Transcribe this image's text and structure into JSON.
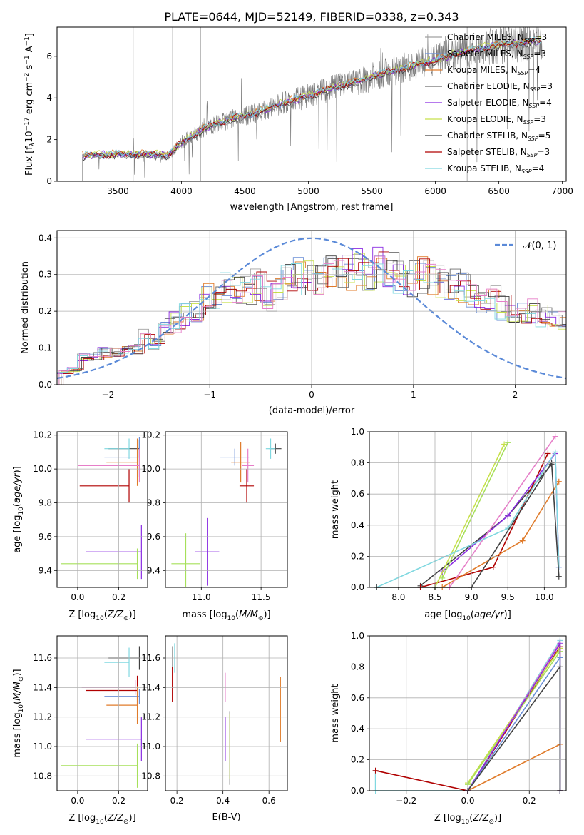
{
  "figure": {
    "title": "PLATE=0644, MJD=52149, FIBERID=0338, z=0.343"
  },
  "series_colors": {
    "Chabrier MILES": "#a0a0a0",
    "Salpeter MILES": "#6b8fd6",
    "Kroupa MILES": "#e07b2a",
    "Chabrier ELODIE": "#6e6e6e",
    "Salpeter ELODIE": "#8a2be2",
    "Kroupa ELODIE": "#c7e04a",
    "Chabrier STELIB": "#404040",
    "Salpeter STELIB": "#b00000",
    "Kroupa STELIB": "#80d8e0",
    "pink": "#e67ec8",
    "lightgreen": "#a6e05a",
    "gaussian": "#5b8ad8"
  },
  "chart_data": [
    {
      "id": "spectrum",
      "type": "line",
      "xlabel": "wavelength [Angstrom, rest frame]",
      "ylabel": "Flux [f",
      "ylabel_parts": [
        "Flux [f",
        "λ",
        "10",
        "−17",
        " erg cm",
        "−2",
        " s",
        "−1",
        " A",
        "−1",
        "]"
      ],
      "xlim": [
        3020,
        7030
      ],
      "ylim": [
        0,
        7.4
      ],
      "xticks": [
        3500,
        4000,
        4500,
        5000,
        5500,
        6000,
        6500,
        7000
      ],
      "yticks": [
        0,
        2,
        4,
        6
      ],
      "grid": false,
      "legend_position": "top-right",
      "legend": [
        {
          "pre": "Chabrier MILES, N",
          "sub": "SSP",
          "post": "=3",
          "color": "#a0a0a0"
        },
        {
          "pre": "Salpeter MILES, N",
          "sub": "SSP",
          "post": "=3",
          "color": "#6b8fd6"
        },
        {
          "pre": "Kroupa MILES, N",
          "sub": "SSP",
          "post": "=4",
          "color": "#e07b2a"
        },
        {
          "pre": "Chabrier ELODIE, N",
          "sub": "SSP",
          "post": "=3",
          "color": "#6e6e6e"
        },
        {
          "pre": "Salpeter ELODIE, N",
          "sub": "SSP",
          "post": "=4",
          "color": "#8a2be2"
        },
        {
          "pre": "Kroupa ELODIE, N",
          "sub": "SSP",
          "post": "=3",
          "color": "#c7e04a"
        },
        {
          "pre": "Chabrier STELIB, N",
          "sub": "SSP",
          "post": "=5",
          "color": "#404040"
        },
        {
          "pre": "Salpeter STELIB, N",
          "sub": "SSP",
          "post": "=3",
          "color": "#b00000"
        },
        {
          "pre": "Kroupa STELIB, N",
          "sub": "SSP",
          "post": "=4",
          "color": "#80d8e0"
        }
      ],
      "model_trend": {
        "x": [
          3220,
          3300,
          3500,
          3700,
          3900,
          4000,
          4200,
          4400,
          4600,
          4800,
          5000,
          5200,
          5400,
          5600,
          5800,
          6000,
          6200,
          6400,
          6600,
          6840
        ],
        "y": [
          1.2,
          1.25,
          1.3,
          1.3,
          1.25,
          1.85,
          2.6,
          3.0,
          3.3,
          3.75,
          4.1,
          4.5,
          4.8,
          5.2,
          5.5,
          5.8,
          6.2,
          6.45,
          6.6,
          6.75
        ]
      },
      "observed_spectrum": {
        "x_start": 3220,
        "x_end": 6840,
        "noise_low": 0.35,
        "noise_high": 1.4
      }
    },
    {
      "id": "residuals",
      "type": "histogram",
      "xlabel": "(data-model)/error",
      "ylabel": "Normed distribution",
      "xlim": [
        -2.5,
        2.5
      ],
      "ylim": [
        0,
        0.42
      ],
      "xticks": [
        -2,
        -1,
        0,
        1,
        2
      ],
      "yticks": [
        0.0,
        0.1,
        0.2,
        0.3,
        0.4
      ],
      "grid": true,
      "legend_position": "top-right",
      "legend": [
        {
          "label": "𝒩(0, 1)",
          "color": "#5b8ad8",
          "style": "dashed"
        }
      ],
      "bin_width": 0.1,
      "bin_start": -2.5,
      "base_density": [
        0.035,
        0.04,
        0.075,
        0.08,
        0.09,
        0.09,
        0.1,
        0.1,
        0.13,
        0.11,
        0.16,
        0.17,
        0.19,
        0.2,
        0.24,
        0.24,
        0.26,
        0.25,
        0.26,
        0.27,
        0.24,
        0.26,
        0.29,
        0.3,
        0.29,
        0.28,
        0.3,
        0.31,
        0.3,
        0.32,
        0.31,
        0.32,
        0.31,
        0.3,
        0.29,
        0.3,
        0.29,
        0.28,
        0.27,
        0.26,
        0.25,
        0.22,
        0.24,
        0.21,
        0.2,
        0.19,
        0.2,
        0.19,
        0.17,
        0.18,
        0.15,
        0.16,
        0.15,
        0.14,
        0.13,
        0.12,
        0.12,
        0.11,
        0.11,
        0.1,
        0.1,
        0.09,
        0.09,
        0.08,
        0.08,
        0.07,
        0.07,
        0.06,
        0.06,
        0.05,
        0.05,
        0.045,
        0.04,
        0.04,
        0.035,
        0.03,
        0.03,
        0.025,
        0.025,
        0.02,
        0.02,
        0.02,
        0.02,
        0.02,
        0.02,
        0.02,
        0.02,
        0.02,
        0.02,
        0.02
      ],
      "gaussian": {
        "mean": 0,
        "sigma": 1
      }
    },
    {
      "id": "age-vs-Z",
      "type": "errorbar",
      "xlabel": "Z [log10(Z/Z⊙)]",
      "ylabel": "age [log10(age/yr)]",
      "xlim": [
        -0.1,
        0.34
      ],
      "ylim": [
        9.3,
        10.22
      ],
      "xticks": [
        0.0,
        0.2
      ],
      "yticks": [
        9.4,
        9.6,
        9.8,
        10.0,
        10.2
      ],
      "grid": true,
      "points": [
        {
          "x": 0.3,
          "y": 10.12,
          "xerr": [
            0.15,
            0.0
          ],
          "yerr": 0.05,
          "color": "#404040"
        },
        {
          "x": 0.25,
          "y": 10.12,
          "xerr": [
            0.12,
            0.0
          ],
          "yerr": 0.06,
          "color": "#80d8e0"
        },
        {
          "x": 0.3,
          "y": 10.07,
          "xerr": [
            0.17,
            0.0
          ],
          "yerr": 0.12,
          "color": "#6b8fd6"
        },
        {
          "x": 0.29,
          "y": 10.04,
          "xerr": [
            0.15,
            0.0
          ],
          "yerr": 0.14,
          "color": "#e07b2a"
        },
        {
          "x": 0.3,
          "y": 10.02,
          "xerr": [
            0.3,
            0.0
          ],
          "yerr": 0.1,
          "color": "#e67ec8"
        },
        {
          "x": 0.25,
          "y": 9.9,
          "xerr": [
            0.24,
            0.0
          ],
          "yerr": 0.1,
          "color": "#b00000"
        },
        {
          "x": 0.31,
          "y": 9.51,
          "xerr": [
            0.27,
            0.0
          ],
          "yerr": 0.16,
          "color": "#8a2be2"
        },
        {
          "x": 0.29,
          "y": 9.44,
          "xerr": [
            0.37,
            0.0
          ],
          "yerr": 0.09,
          "color": "#a6e05a"
        }
      ]
    },
    {
      "id": "age-vs-mass",
      "type": "errorbar",
      "xlabel": "mass [log10(M/M⊙)]",
      "ylabel": "",
      "xlim": [
        10.7,
        11.72
      ],
      "ylim": [
        9.3,
        10.22
      ],
      "xticks": [
        11.0,
        11.5
      ],
      "yticks": [
        9.4,
        9.6,
        9.8,
        10.0,
        10.2
      ],
      "grid": true,
      "points": [
        {
          "x": 11.62,
          "y": 10.12,
          "xerr": 0.05,
          "yerr": 0.03,
          "color": "#404040"
        },
        {
          "x": 11.58,
          "y": 10.12,
          "xerr": 0.04,
          "yerr": 0.06,
          "color": "#80d8e0"
        },
        {
          "x": 11.28,
          "y": 10.07,
          "xerr": 0.12,
          "yerr": 0.05,
          "color": "#6b8fd6"
        },
        {
          "x": 11.33,
          "y": 10.04,
          "xerr": 0.08,
          "yerr": 0.12,
          "color": "#e07b2a"
        },
        {
          "x": 11.39,
          "y": 10.02,
          "xerr": 0.05,
          "yerr": 0.1,
          "color": "#e67ec8"
        },
        {
          "x": 11.38,
          "y": 9.9,
          "xerr": 0.06,
          "yerr": 0.1,
          "color": "#b00000"
        },
        {
          "x": 11.05,
          "y": 9.51,
          "xerr": 0.1,
          "yerr": 0.2,
          "color": "#8a2be2"
        },
        {
          "x": 10.87,
          "y": 9.44,
          "xerr": 0.12,
          "yerr": 0.18,
          "color": "#a6e05a"
        }
      ]
    },
    {
      "id": "massweight-vs-age",
      "type": "line",
      "xlabel": "age [log10(age/yr)]",
      "ylabel": "mass weight",
      "xlim": [
        7.6,
        10.3
      ],
      "ylim": [
        0,
        1
      ],
      "xticks": [
        8.0,
        8.5,
        9.0,
        9.5,
        10.0
      ],
      "yticks": [
        0.0,
        0.2,
        0.4,
        0.6,
        0.8,
        1.0
      ],
      "grid": true,
      "series": [
        {
          "x": [
            8.3,
            9.5,
            10.1
          ],
          "y": [
            0.01,
            0.46,
            0.79
          ],
          "color": "#404040"
        },
        {
          "x": [
            8.3,
            9.3,
            10.05
          ],
          "y": [
            0.0,
            0.13,
            0.86
          ],
          "color": "#b00000"
        },
        {
          "x": [
            8.6,
            9.5,
            10.15,
            10.2
          ],
          "y": [
            0.1,
            0.46,
            0.86,
            0.13
          ],
          "color": "#8a2be2"
        },
        {
          "x": [
            8.6,
            9.7,
            10.2
          ],
          "y": [
            0.0,
            0.3,
            0.68
          ],
          "color": "#e07b2a"
        },
        {
          "x": [
            8.7,
            10.15
          ],
          "y": [
            0.0,
            0.97
          ],
          "color": "#e67ec8"
        },
        {
          "x": [
            8.5,
            9.45
          ],
          "y": [
            0.0,
            0.92
          ],
          "color": "#c7e04a"
        },
        {
          "x": [
            8.6,
            9.5
          ],
          "y": [
            0.06,
            0.93
          ],
          "color": "#a6e05a"
        },
        {
          "x": [
            7.7,
            9.5,
            10.15,
            10.2
          ],
          "y": [
            0.0,
            0.38,
            0.87,
            0.13
          ],
          "color": "#80d8e0"
        },
        {
          "x": [
            7.7,
            8.5,
            9.0,
            10.1,
            10.2
          ],
          "y": [
            0.0,
            0.0,
            0.0,
            0.8,
            0.07
          ],
          "color": "#404040"
        }
      ]
    },
    {
      "id": "mass-vs-Z",
      "type": "errorbar",
      "xlabel": "Z [log10(Z/Z⊙)]",
      "ylabel": "mass [log10(M/M⊙)]",
      "xlim": [
        -0.1,
        0.34
      ],
      "ylim": [
        10.7,
        11.75
      ],
      "xticks": [
        0.0,
        0.2
      ],
      "yticks": [
        10.8,
        11.0,
        11.2,
        11.4,
        11.6
      ],
      "grid": true,
      "points": [
        {
          "x": 0.3,
          "y": 11.6,
          "xerr": [
            0.15,
            0.0
          ],
          "yerr": 0.08,
          "color": "#404040"
        },
        {
          "x": 0.25,
          "y": 11.57,
          "xerr": [
            0.12,
            0.0
          ],
          "yerr": 0.1,
          "color": "#80d8e0"
        },
        {
          "x": 0.28,
          "y": 11.4,
          "xerr": [
            0.26,
            0.0
          ],
          "yerr": 0.05,
          "color": "#e67ec8"
        },
        {
          "x": 0.29,
          "y": 11.38,
          "xerr": [
            0.25,
            0.0
          ],
          "yerr": 0.1,
          "color": "#b00000"
        },
        {
          "x": 0.3,
          "y": 11.34,
          "xerr": [
            0.17,
            0.0
          ],
          "yerr": 0.05,
          "color": "#6b8fd6"
        },
        {
          "x": 0.29,
          "y": 11.28,
          "xerr": [
            0.15,
            0.0
          ],
          "yerr": 0.13,
          "color": "#e07b2a"
        },
        {
          "x": 0.31,
          "y": 11.05,
          "xerr": [
            0.27,
            0.0
          ],
          "yerr": 0.15,
          "color": "#8a2be2"
        },
        {
          "x": 0.29,
          "y": 10.87,
          "xerr": [
            0.37,
            0.0
          ],
          "yerr": 0.15,
          "color": "#a6e05a"
        }
      ]
    },
    {
      "id": "mass-vs-ebv",
      "type": "errorbar",
      "xlabel": "E(B-V)",
      "ylabel": "",
      "xlim": [
        0.15,
        0.68
      ],
      "ylim": [
        10.7,
        11.75
      ],
      "xticks": [
        0.2,
        0.4,
        0.6
      ],
      "yticks": [
        10.8,
        11.0,
        11.2,
        11.4,
        11.6
      ],
      "grid": true,
      "points": [
        {
          "x": 0.18,
          "y": 11.6,
          "xerr": 0.0,
          "yerr": 0.08,
          "color": "#a0a0a0"
        },
        {
          "x": 0.18,
          "y": 11.42,
          "xerr": 0.0,
          "yerr": 0.12,
          "color": "#b00000"
        },
        {
          "x": 0.19,
          "y": 11.6,
          "xerr": 0.0,
          "yerr": 0.1,
          "color": "#80d8e0"
        },
        {
          "x": 0.41,
          "y": 11.4,
          "xerr": 0.0,
          "yerr": 0.1,
          "color": "#e67ec8"
        },
        {
          "x": 0.41,
          "y": 11.05,
          "xerr": 0.0,
          "yerr": 0.15,
          "color": "#8a2be2"
        },
        {
          "x": 0.43,
          "y": 10.99,
          "xerr": 0.0,
          "yerr": 0.25,
          "color": "#404040"
        },
        {
          "x": 0.43,
          "y": 11.0,
          "xerr": 0.0,
          "yerr": 0.22,
          "color": "#c7e04a"
        },
        {
          "x": 0.65,
          "y": 11.25,
          "xerr": 0.0,
          "yerr": 0.22,
          "color": "#e07b2a"
        }
      ]
    },
    {
      "id": "massweight-vs-Z",
      "type": "line",
      "xlabel": "Z [log10(Z/Z⊙)]",
      "ylabel": "mass weight",
      "xlim": [
        -0.32,
        0.32
      ],
      "ylim": [
        0,
        1
      ],
      "xticks": [
        -0.2,
        0.0,
        0.2
      ],
      "yticks": [
        0.0,
        0.2,
        0.4,
        0.6,
        0.8,
        1.0
      ],
      "grid": true,
      "series": [
        {
          "x": [
            -0.3,
            -0.3,
            0.0,
            0.3,
            0.3
          ],
          "y": [
            0.13,
            0.0,
            0.0,
            0.97,
            0.0
          ],
          "color": "#80d8e0"
        },
        {
          "x": [
            -0.3,
            0.0,
            0.3,
            0.3
          ],
          "y": [
            0.13,
            0.0,
            0.93,
            0.0
          ],
          "color": "#b00000"
        },
        {
          "x": [
            0.0,
            0.3,
            0.3
          ],
          "y": [
            0.0,
            0.3,
            0.0
          ],
          "color": "#e07b2a"
        },
        {
          "x": [
            0.0,
            0.3,
            0.3
          ],
          "y": [
            0.05,
            0.92,
            0.0
          ],
          "color": "#c7e04a"
        },
        {
          "x": [
            0.0,
            0.3,
            0.3
          ],
          "y": [
            0.04,
            0.9,
            0.0
          ],
          "color": "#a6e05a"
        },
        {
          "x": [
            0.0,
            0.3,
            0.3
          ],
          "y": [
            0.0,
            0.96,
            0.0
          ],
          "color": "#e67ec8"
        },
        {
          "x": [
            0.0,
            0.3,
            0.3
          ],
          "y": [
            0.0,
            0.95,
            0.0
          ],
          "color": "#8a2be2"
        },
        {
          "x": [
            0.0,
            0.3,
            0.3
          ],
          "y": [
            0.0,
            0.86,
            0.0
          ],
          "color": "#6b8fd6"
        },
        {
          "x": [
            0.0,
            0.3,
            0.3
          ],
          "y": [
            0.0,
            0.8,
            0.0
          ],
          "color": "#404040"
        }
      ]
    }
  ]
}
